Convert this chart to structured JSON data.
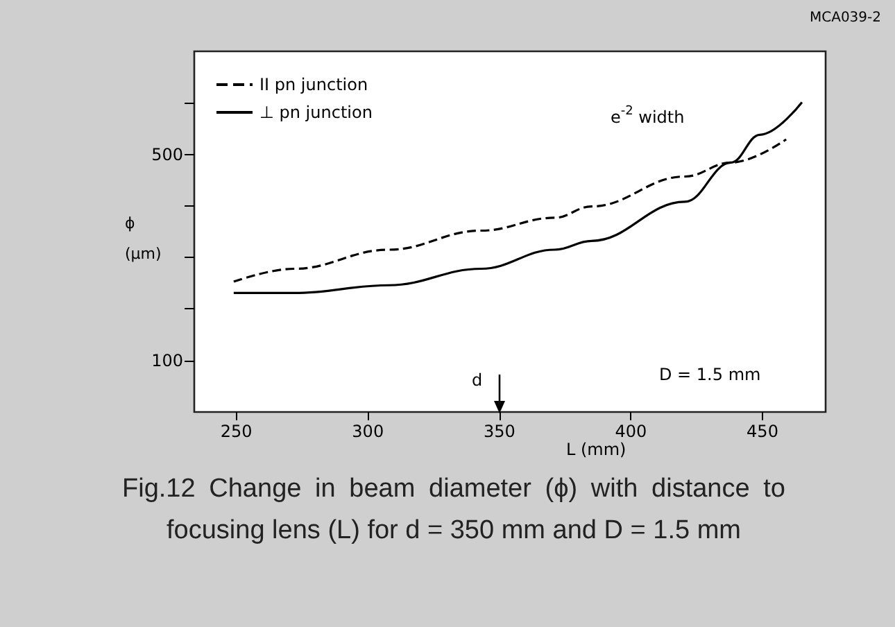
{
  "chart_data": {
    "type": "line",
    "xlabel": "L (mm)",
    "ylabel": "ϕ (μm)",
    "x": [
      249,
      272,
      308,
      343,
      371,
      385,
      420.5,
      438,
      449,
      465
    ],
    "series": [
      {
        "name": "II pn junction",
        "color": "#000000",
        "line_style": "dashed",
        "x": [
          249,
          272,
          308,
          343,
          371,
          385,
          420.5,
          438,
          459
        ],
        "values": [
          253,
          278,
          315,
          352,
          377,
          399,
          457,
          484,
          529
        ]
      },
      {
        "name": "⊥ pn junction",
        "color": "#000000",
        "line_style": "solid",
        "values": [
          231,
          231,
          246,
          278,
          315,
          332,
          408,
          484,
          538,
          601
        ]
      }
    ],
    "xlim": [
      234,
      474
    ],
    "xticks": [
      250,
      300,
      350,
      400,
      450
    ],
    "ylim": [
      0,
      700
    ],
    "yticks": [
      {
        "value": 100,
        "label": "100"
      },
      {
        "value": 200,
        "label": null
      },
      {
        "value": 300,
        "label": null
      },
      {
        "value": 400,
        "label": null
      },
      500,
      {
        "value": 600,
        "label": null
      }
    ],
    "grid": false,
    "legend": "top left",
    "marker": "none",
    "annotations": [
      "MCA039-2",
      "e$^{-2}$ width",
      "D = 1.5 mm",
      "d",
      "Fig.12    Change in beam diameter (ϕ) with distance to focusing lens (L) for d = 350 mm and D = 1.5 mm"
    ]
  }
}
